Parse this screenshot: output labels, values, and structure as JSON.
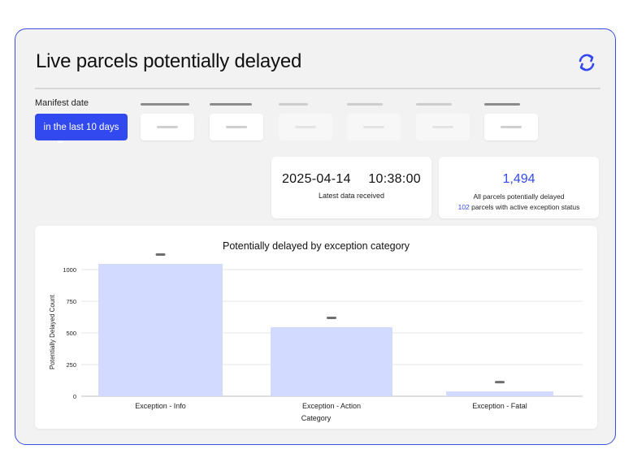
{
  "header": {
    "title": "Live parcels potentially delayed",
    "refresh_icon": "refresh-icon"
  },
  "filters": {
    "manifest_label": "Manifest date",
    "manifest_value": "in the last 10 days"
  },
  "kpis": {
    "latest_timestamp": "2025-04-14  10:38:00",
    "latest_label": "Latest data received",
    "total_value": "1,494",
    "total_label": "All parcels potentially delayed",
    "exception_count": "102",
    "exception_label": "parcels with active exception status"
  },
  "colors": {
    "accent": "#3349f0",
    "bar": "#d2daff"
  },
  "chart_data": {
    "type": "bar",
    "title": "Potentially delayed by exception category",
    "xlabel": "Category",
    "ylabel": "Potentially Delayed Count",
    "categories": [
      "Exception - Info",
      "Exception - Action",
      "Exception - Fatal"
    ],
    "values": [
      1045,
      545,
      38
    ],
    "ylim": [
      0,
      1000
    ],
    "yticks": [
      0,
      250,
      500,
      750,
      1000
    ],
    "grid": true
  }
}
